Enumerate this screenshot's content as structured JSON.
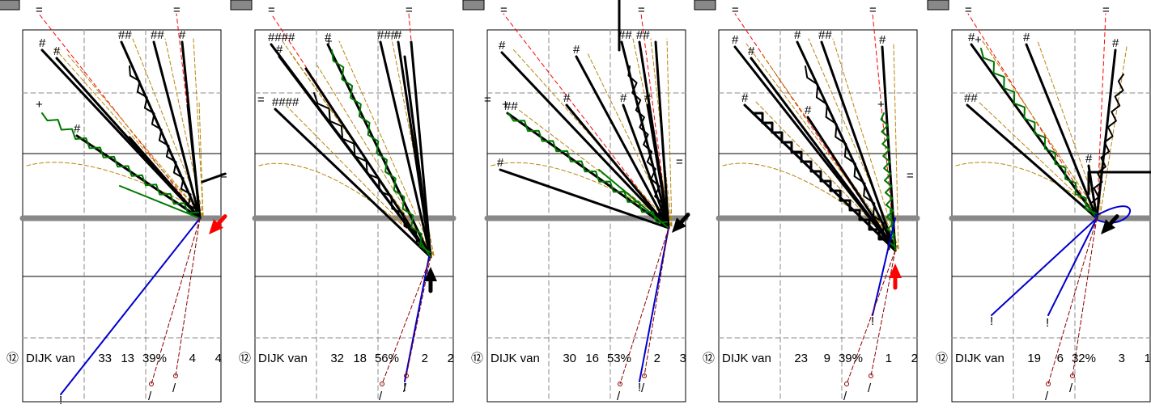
{
  "chart_data": [
    {
      "type": "other",
      "row": {
        "badge": "⑫",
        "name": "DIJK van",
        "a": "33",
        "b": "13",
        "pct": "39%",
        "c": "4",
        "d": "4"
      }
    },
    {
      "type": "other",
      "row": {
        "badge": "⑫",
        "name": "DIJK van",
        "a": "32",
        "b": "18",
        "pct": "56%",
        "c": "2",
        "d": "2"
      }
    },
    {
      "type": "other",
      "row": {
        "badge": "⑫",
        "name": "DIJK van",
        "a": "30",
        "b": "16",
        "pct": "53%",
        "c": "2",
        "d": "3"
      }
    },
    {
      "type": "other",
      "row": {
        "badge": "⑫",
        "name": "DIJK van",
        "a": "23",
        "b": "9",
        "pct": "39%",
        "c": "1",
        "d": "2"
      }
    },
    {
      "type": "other",
      "row": {
        "badge": "⑫",
        "name": "DIJK van",
        "a": "19",
        "b": "6",
        "pct": "32%",
        "c": "3",
        "d": "1"
      }
    }
  ],
  "colors": {
    "black": "#000000",
    "green": "#007700",
    "olive": "#b8860b",
    "red": "#ff0000",
    "darkred": "#8b0000",
    "blue": "#0000cc",
    "gray": "#888888"
  }
}
